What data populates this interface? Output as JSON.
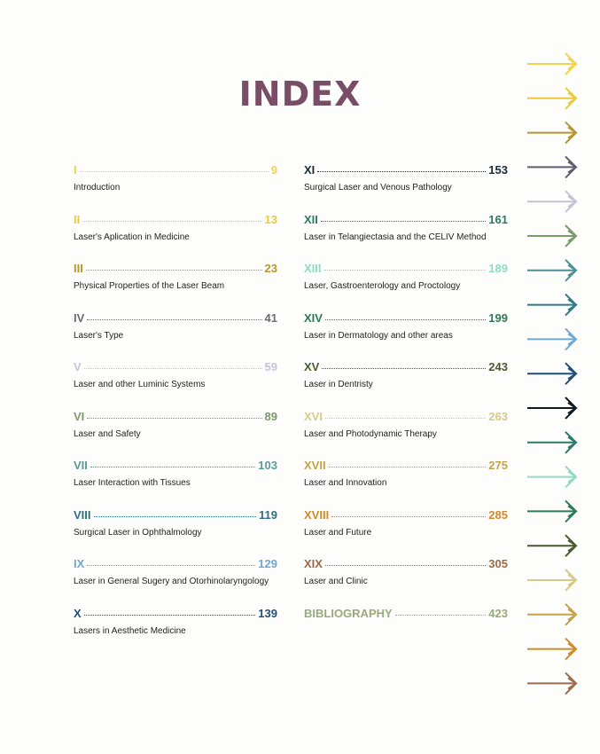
{
  "title": "INDEX",
  "left_entries": [
    {
      "numeral": "I",
      "page": 9,
      "subtitle": "Introduction",
      "color": "#f2d24e"
    },
    {
      "numeral": "II",
      "page": 13,
      "subtitle": "Laser's Aplication in Medicine",
      "color": "#ecc93a"
    },
    {
      "numeral": "III",
      "page": 23,
      "subtitle": "Physical Properties of the Laser Beam",
      "color": "#b8952e"
    },
    {
      "numeral": "IV",
      "page": 41,
      "subtitle": "Laser's Type",
      "color": "#6b6b78"
    },
    {
      "numeral": "V",
      "page": 59,
      "subtitle": "Laser and other Luminic Systems",
      "color": "#c4c4d6"
    },
    {
      "numeral": "VI",
      "page": 89,
      "subtitle": "Laser and Safety",
      "color": "#7a9a6a"
    },
    {
      "numeral": "VII",
      "page": 103,
      "subtitle": "Laser Interaction with Tissues",
      "color": "#5b9a9c"
    },
    {
      "numeral": "VIII",
      "page": 119,
      "subtitle": "Surgical Laser in Ophthalmology",
      "color": "#2e6f7e"
    },
    {
      "numeral": "IX",
      "page": 129,
      "subtitle": "Laser in General Sugery and Otorhinolaryngology",
      "color": "#6fa8d0"
    },
    {
      "numeral": "X",
      "page": 139,
      "subtitle": "Lasers in Aesthetic Medicine",
      "color": "#1f4e7a"
    }
  ],
  "right_entries": [
    {
      "numeral": "XI",
      "page": 153,
      "subtitle": "Surgical Laser and Venous Pathology",
      "color": "#1b2a35"
    },
    {
      "numeral": "XII",
      "page": 161,
      "subtitle": "Laser in Telangiectasia and the CELIV Method",
      "color": "#2b7a6a"
    },
    {
      "numeral": "XIII",
      "page": 189,
      "subtitle": "Laser, Gastroenterology and Proctology",
      "color": "#8fdcc0"
    },
    {
      "numeral": "XIV",
      "page": 199,
      "subtitle": "Laser in Dermatology and other areas",
      "color": "#2d7a55"
    },
    {
      "numeral": "XV",
      "page": 243,
      "subtitle": "Laser in Dentristy",
      "color": "#4a5a2e"
    },
    {
      "numeral": "XVI",
      "page": 263,
      "subtitle": "Laser and Photodynamic Therapy",
      "color": "#d6c98a"
    },
    {
      "numeral": "XVII",
      "page": 275,
      "subtitle": "Laser and Innovation",
      "color": "#c4a24a"
    },
    {
      "numeral": "XVIII",
      "page": 285,
      "subtitle": "Laser and Future",
      "color": "#d08a2a"
    },
    {
      "numeral": "XIX",
      "page": 305,
      "subtitle": "Laser and Clinic",
      "color": "#9a6a4a"
    },
    {
      "numeral": "BIBLIOGRAPHY",
      "page": 423,
      "color": "#9aaa7a"
    }
  ],
  "tab_arrow_colors": [
    "#f2d24e",
    "#ecc93a",
    "#b8952e",
    "#5e5e70",
    "#c4c4d6",
    "#7a9a6a",
    "#4e8f96",
    "#2e7a86",
    "#6fa8d0",
    "#1f4e7a",
    "#111a20",
    "#2b7a6a",
    "#8fdcc0",
    "#2d7a55",
    "#4a5a2e",
    "#d6c98a",
    "#c4a24a",
    "#d08a2a",
    "#9a6a4a"
  ]
}
